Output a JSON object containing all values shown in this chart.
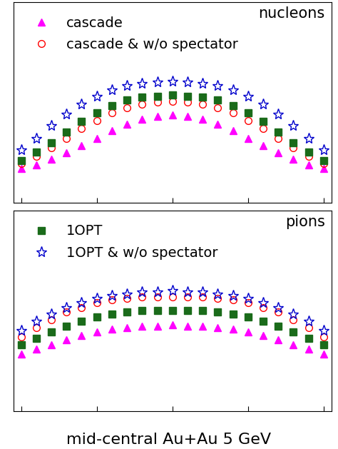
{
  "title": "mid-central Au+Au 5 GeV",
  "top_label": "nucleons",
  "bottom_label": "pions",
  "legend_top": [
    {
      "label": "cascade",
      "color": "#ff00ff",
      "marker": "^",
      "markersize": 7,
      "markerfacecolor": "#ff00ff"
    },
    {
      "label": "cascade & w/o spectator",
      "color": "#ff0000",
      "marker": "o",
      "markersize": 7,
      "markerfacecolor": "none"
    }
  ],
  "legend_bottom": [
    {
      "label": "1OPT",
      "color": "#1a6b1a",
      "marker": "s",
      "markersize": 7,
      "markerfacecolor": "#1a6b1a"
    },
    {
      "label": "1OPT & w/o spectator",
      "color": "#0000cc",
      "marker": "*",
      "markersize": 11,
      "markerfacecolor": "none"
    }
  ],
  "n_points": 21,
  "x_range": [
    -1.0,
    1.0
  ],
  "nucleons_ylim": [
    -0.3,
    1.6
  ],
  "pions_ylim": [
    -0.3,
    1.0
  ],
  "nucleons": {
    "cascade": {
      "color": "#ff00ff",
      "marker": "^",
      "markersize": 7,
      "markerfacecolor": "#ff00ff",
      "values": [
        0.02,
        0.06,
        0.11,
        0.17,
        0.24,
        0.31,
        0.38,
        0.44,
        0.49,
        0.52,
        0.53,
        0.52,
        0.49,
        0.44,
        0.38,
        0.31,
        0.24,
        0.17,
        0.11,
        0.06,
        0.02
      ]
    },
    "cascade_wo": {
      "color": "#ff0000",
      "marker": "o",
      "markersize": 7,
      "markerfacecolor": "none",
      "values": [
        0.07,
        0.14,
        0.22,
        0.31,
        0.4,
        0.48,
        0.55,
        0.6,
        0.63,
        0.65,
        0.66,
        0.65,
        0.63,
        0.6,
        0.55,
        0.48,
        0.4,
        0.31,
        0.22,
        0.14,
        0.07
      ]
    },
    "1opt": {
      "color": "#1a6b1a",
      "marker": "s",
      "markersize": 7,
      "markerfacecolor": "#1a6b1a",
      "values": [
        0.1,
        0.18,
        0.27,
        0.37,
        0.47,
        0.55,
        0.62,
        0.67,
        0.7,
        0.71,
        0.72,
        0.71,
        0.7,
        0.67,
        0.62,
        0.55,
        0.47,
        0.37,
        0.27,
        0.18,
        0.1
      ]
    },
    "1opt_wo": {
      "color": "#0000cc",
      "marker": "*",
      "markersize": 11,
      "markerfacecolor": "none",
      "values": [
        0.2,
        0.31,
        0.43,
        0.54,
        0.63,
        0.71,
        0.77,
        0.81,
        0.83,
        0.84,
        0.85,
        0.84,
        0.83,
        0.81,
        0.77,
        0.71,
        0.63,
        0.54,
        0.43,
        0.31,
        0.2
      ]
    }
  },
  "pions": {
    "cascade": {
      "color": "#ff00ff",
      "marker": "^",
      "markersize": 7,
      "markerfacecolor": "#ff00ff",
      "values": [
        0.07,
        0.1,
        0.13,
        0.16,
        0.19,
        0.21,
        0.23,
        0.24,
        0.25,
        0.25,
        0.26,
        0.25,
        0.25,
        0.24,
        0.23,
        0.21,
        0.19,
        0.16,
        0.13,
        0.1,
        0.07
      ]
    },
    "cascade_wo": {
      "color": "#ff0000",
      "marker": "o",
      "markersize": 7,
      "markerfacecolor": "none",
      "values": [
        0.18,
        0.24,
        0.29,
        0.34,
        0.37,
        0.4,
        0.42,
        0.43,
        0.44,
        0.44,
        0.44,
        0.44,
        0.44,
        0.43,
        0.42,
        0.4,
        0.37,
        0.34,
        0.29,
        0.24,
        0.18
      ]
    },
    "1opt": {
      "color": "#1a6b1a",
      "marker": "s",
      "markersize": 7,
      "markerfacecolor": "#1a6b1a",
      "values": [
        0.13,
        0.17,
        0.21,
        0.25,
        0.28,
        0.31,
        0.33,
        0.34,
        0.35,
        0.35,
        0.35,
        0.35,
        0.35,
        0.34,
        0.33,
        0.31,
        0.28,
        0.25,
        0.21,
        0.17,
        0.13
      ]
    },
    "1opt_wo": {
      "color": "#0000cc",
      "marker": "*",
      "markersize": 11,
      "markerfacecolor": "none",
      "values": [
        0.22,
        0.28,
        0.33,
        0.37,
        0.4,
        0.43,
        0.45,
        0.46,
        0.47,
        0.47,
        0.48,
        0.47,
        0.47,
        0.46,
        0.45,
        0.43,
        0.4,
        0.37,
        0.33,
        0.28,
        0.22
      ]
    }
  },
  "bg_color": "#ffffff",
  "title_fontsize": 16,
  "label_fontsize": 15,
  "legend_fontsize": 14
}
